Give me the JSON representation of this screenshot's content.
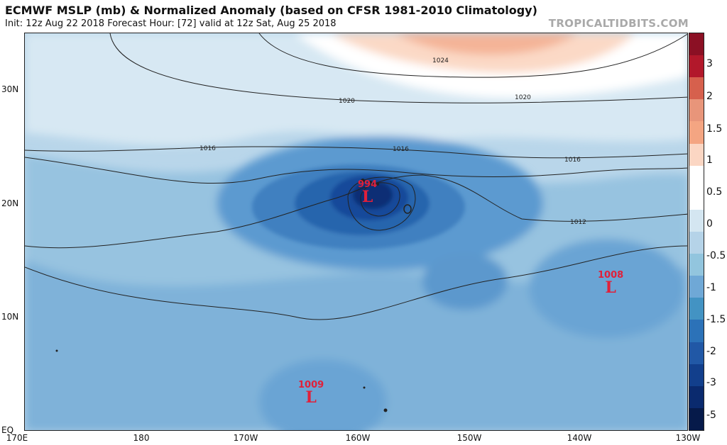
{
  "header": {
    "title": "ECMWF MSLP (mb) & Normalized Anomaly (based on CFSR 1981-2010 Climatology)",
    "subtitle": "Init: 12z Aug 22 2018   Forecast Hour: [72]   valid at 12z Sat, Aug 25 2018",
    "credit": "TROPICALTIDBITS.COM"
  },
  "axes": {
    "lat_labels": [
      "30N",
      "20N",
      "10N",
      "EQ"
    ],
    "lon_labels": [
      "170E",
      "180",
      "170W",
      "160W",
      "150W",
      "140W",
      "130W"
    ]
  },
  "colorbar": {
    "labels": [
      "3",
      "2",
      "1.5",
      "1",
      "0.5",
      "0",
      "-0.5",
      "-1",
      "-1.5",
      "-2",
      "-3",
      "-5"
    ],
    "colors": [
      "#8b1024",
      "#b2182b",
      "#d6604d",
      "#e8957a",
      "#f4a582",
      "#fbd6c3",
      "#ffffff",
      "#ffffff",
      "#d4e6f1",
      "#b5d3e8",
      "#92c5de",
      "#6fa8d6",
      "#4393c3",
      "#2c72b8",
      "#2158a6",
      "#123f8c",
      "#0a2a6e",
      "#061a4a"
    ]
  },
  "isobars": [
    "1024",
    "1020",
    "1020",
    "1016",
    "1016",
    "1016",
    "1012"
  ],
  "lows": [
    {
      "pressure": "994",
      "letter": "L"
    },
    {
      "pressure": "1008",
      "letter": "L"
    },
    {
      "pressure": "1009",
      "letter": "L"
    }
  ]
}
